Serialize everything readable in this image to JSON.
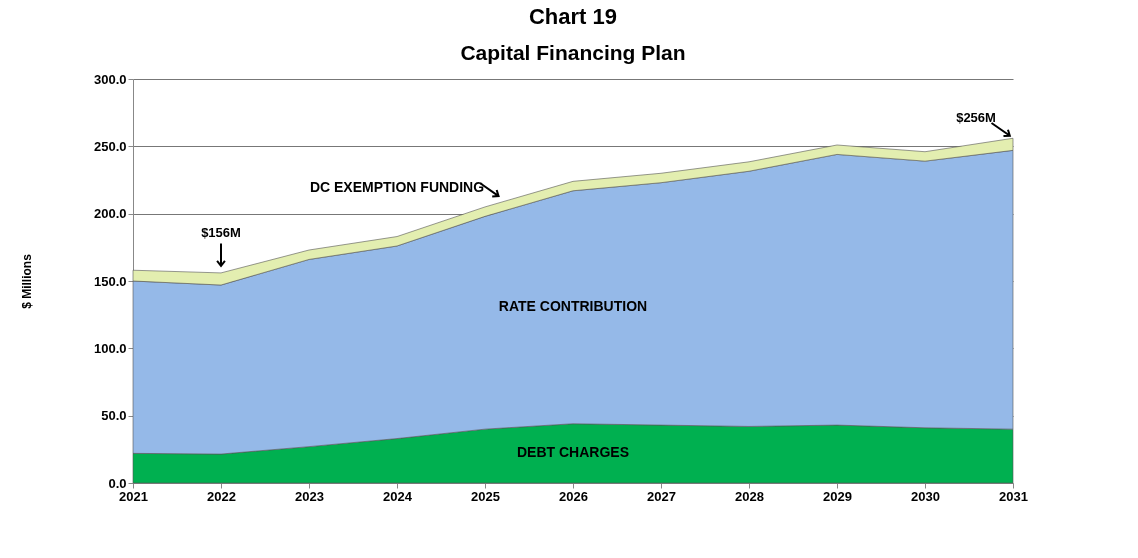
{
  "chart_data": {
    "type": "area",
    "stacked": true,
    "title": "Chart 19",
    "subtitle": "Capital Financing Plan",
    "ylabel": "$ Millions",
    "x": [
      2021,
      2022,
      2023,
      2024,
      2025,
      2026,
      2027,
      2028,
      2029,
      2030,
      2031
    ],
    "series": [
      {
        "name": "DEBT CHARGES",
        "color": "#00b050",
        "values": [
          22,
          21.5,
          27,
          33,
          40,
          44,
          43,
          42,
          43,
          41,
          40
        ]
      },
      {
        "name": "RATE CONTRIBUTION",
        "color": "#95b9e8",
        "values": [
          128,
          125.5,
          139,
          143,
          158,
          173,
          180,
          189.5,
          201,
          198,
          207
        ]
      },
      {
        "name": "DC EXEMPTION FUNDING",
        "color": "#e3eeb0",
        "values": [
          8,
          9,
          7,
          7,
          7,
          7,
          7,
          7,
          7,
          7,
          9
        ]
      }
    ],
    "xlim": [
      2021,
      2031
    ],
    "xticks": [
      2021,
      2022,
      2023,
      2024,
      2025,
      2026,
      2027,
      2028,
      2029,
      2030,
      2031
    ],
    "ylim": [
      0,
      300
    ],
    "yticks": [
      {
        "value": 0,
        "label": "0.0"
      },
      {
        "value": 50,
        "label": "50.0"
      },
      {
        "value": 100,
        "label": "100.0"
      },
      {
        "value": 150,
        "label": "150.0"
      },
      {
        "value": 200,
        "label": "200.0"
      },
      {
        "value": 250,
        "label": "250.0"
      },
      {
        "value": 300,
        "label": "300.0"
      }
    ],
    "grid": "y",
    "annotations": [
      {
        "text": "$156M",
        "x": 2022,
        "y": 156
      },
      {
        "text": "$256M",
        "x": 2031,
        "y": 256
      }
    ]
  }
}
